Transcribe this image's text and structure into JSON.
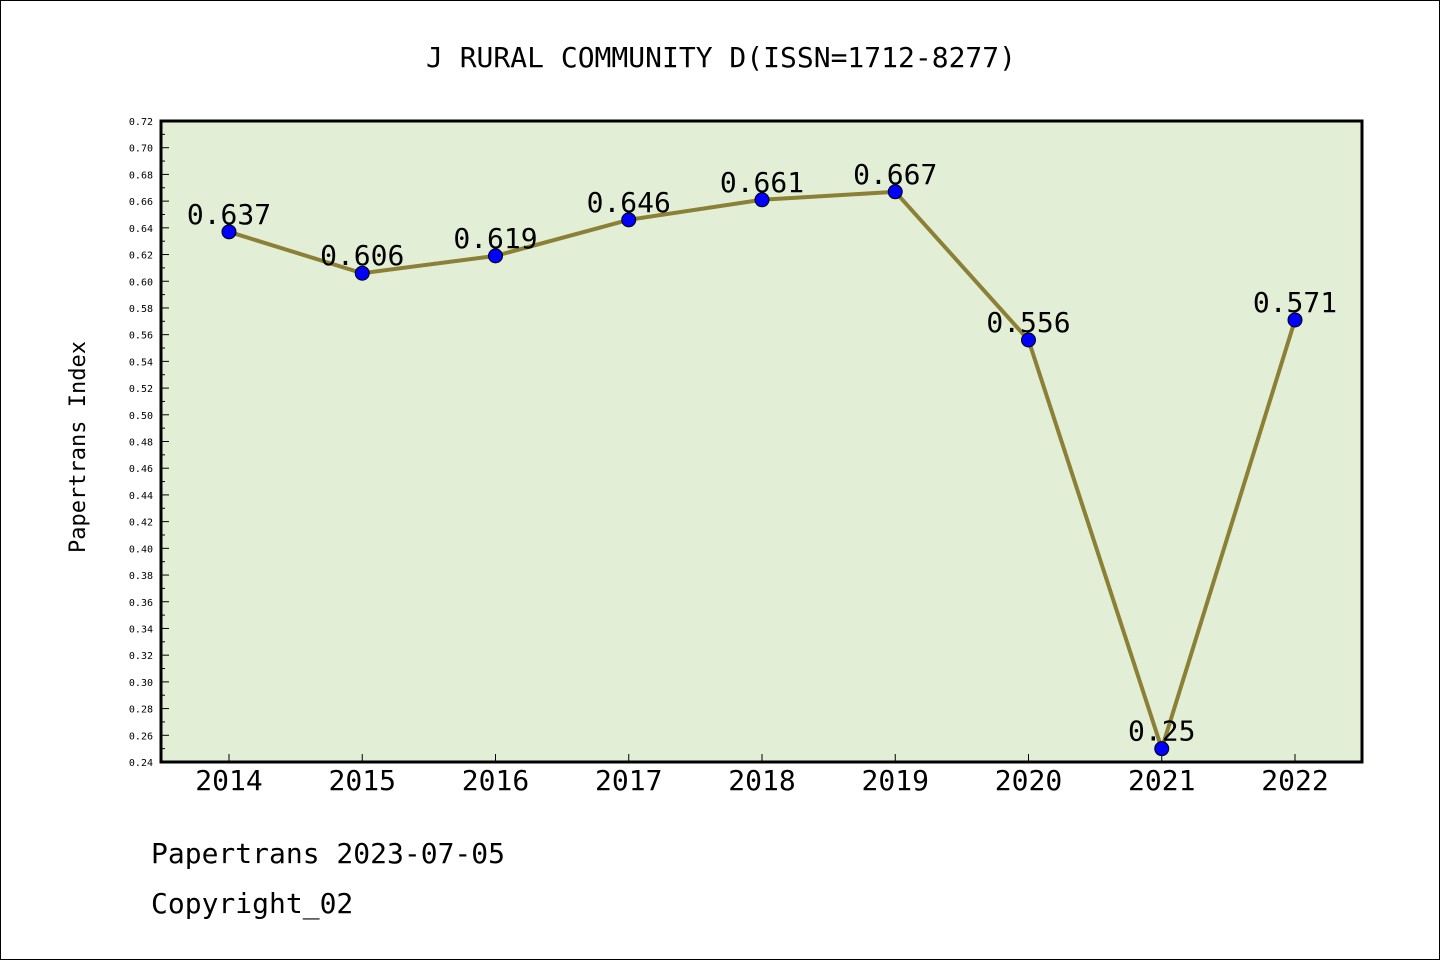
{
  "chart_data": {
    "type": "line",
    "title": "J RURAL COMMUNITY D(ISSN=1712-8277)",
    "xlabel": "",
    "ylabel": "Papertrans Index",
    "categories": [
      "2014",
      "2015",
      "2016",
      "2017",
      "2018",
      "2019",
      "2020",
      "2021",
      "2022"
    ],
    "series": [
      {
        "values": [
          0.637,
          0.606,
          0.619,
          0.646,
          0.661,
          0.667,
          0.556,
          0.25,
          0.571
        ],
        "labels": [
          "0.637",
          "0.606",
          "0.619",
          "0.646",
          "0.661",
          "0.667",
          "0.556",
          "0.25",
          "0.571"
        ]
      }
    ],
    "ylim": [
      0.24,
      0.72
    ],
    "yticks": [
      "0.24",
      "0.26",
      "0.28",
      "0.30",
      "0.32",
      "0.34",
      "0.36",
      "0.38",
      "0.40",
      "0.42",
      "0.44",
      "0.46",
      "0.48",
      "0.50",
      "0.52",
      "0.54",
      "0.56",
      "0.58",
      "0.60",
      "0.62",
      "0.64",
      "0.66",
      "0.68",
      "0.70",
      "0.72"
    ],
    "grid": false,
    "legend": "none",
    "colors": {
      "plot_background": "#e2efd6",
      "line": "#8b8035",
      "marker": "#0000ff"
    }
  },
  "footer": {
    "line1": "Papertrans 2023-07-05",
    "line2": "Copyright_02"
  }
}
